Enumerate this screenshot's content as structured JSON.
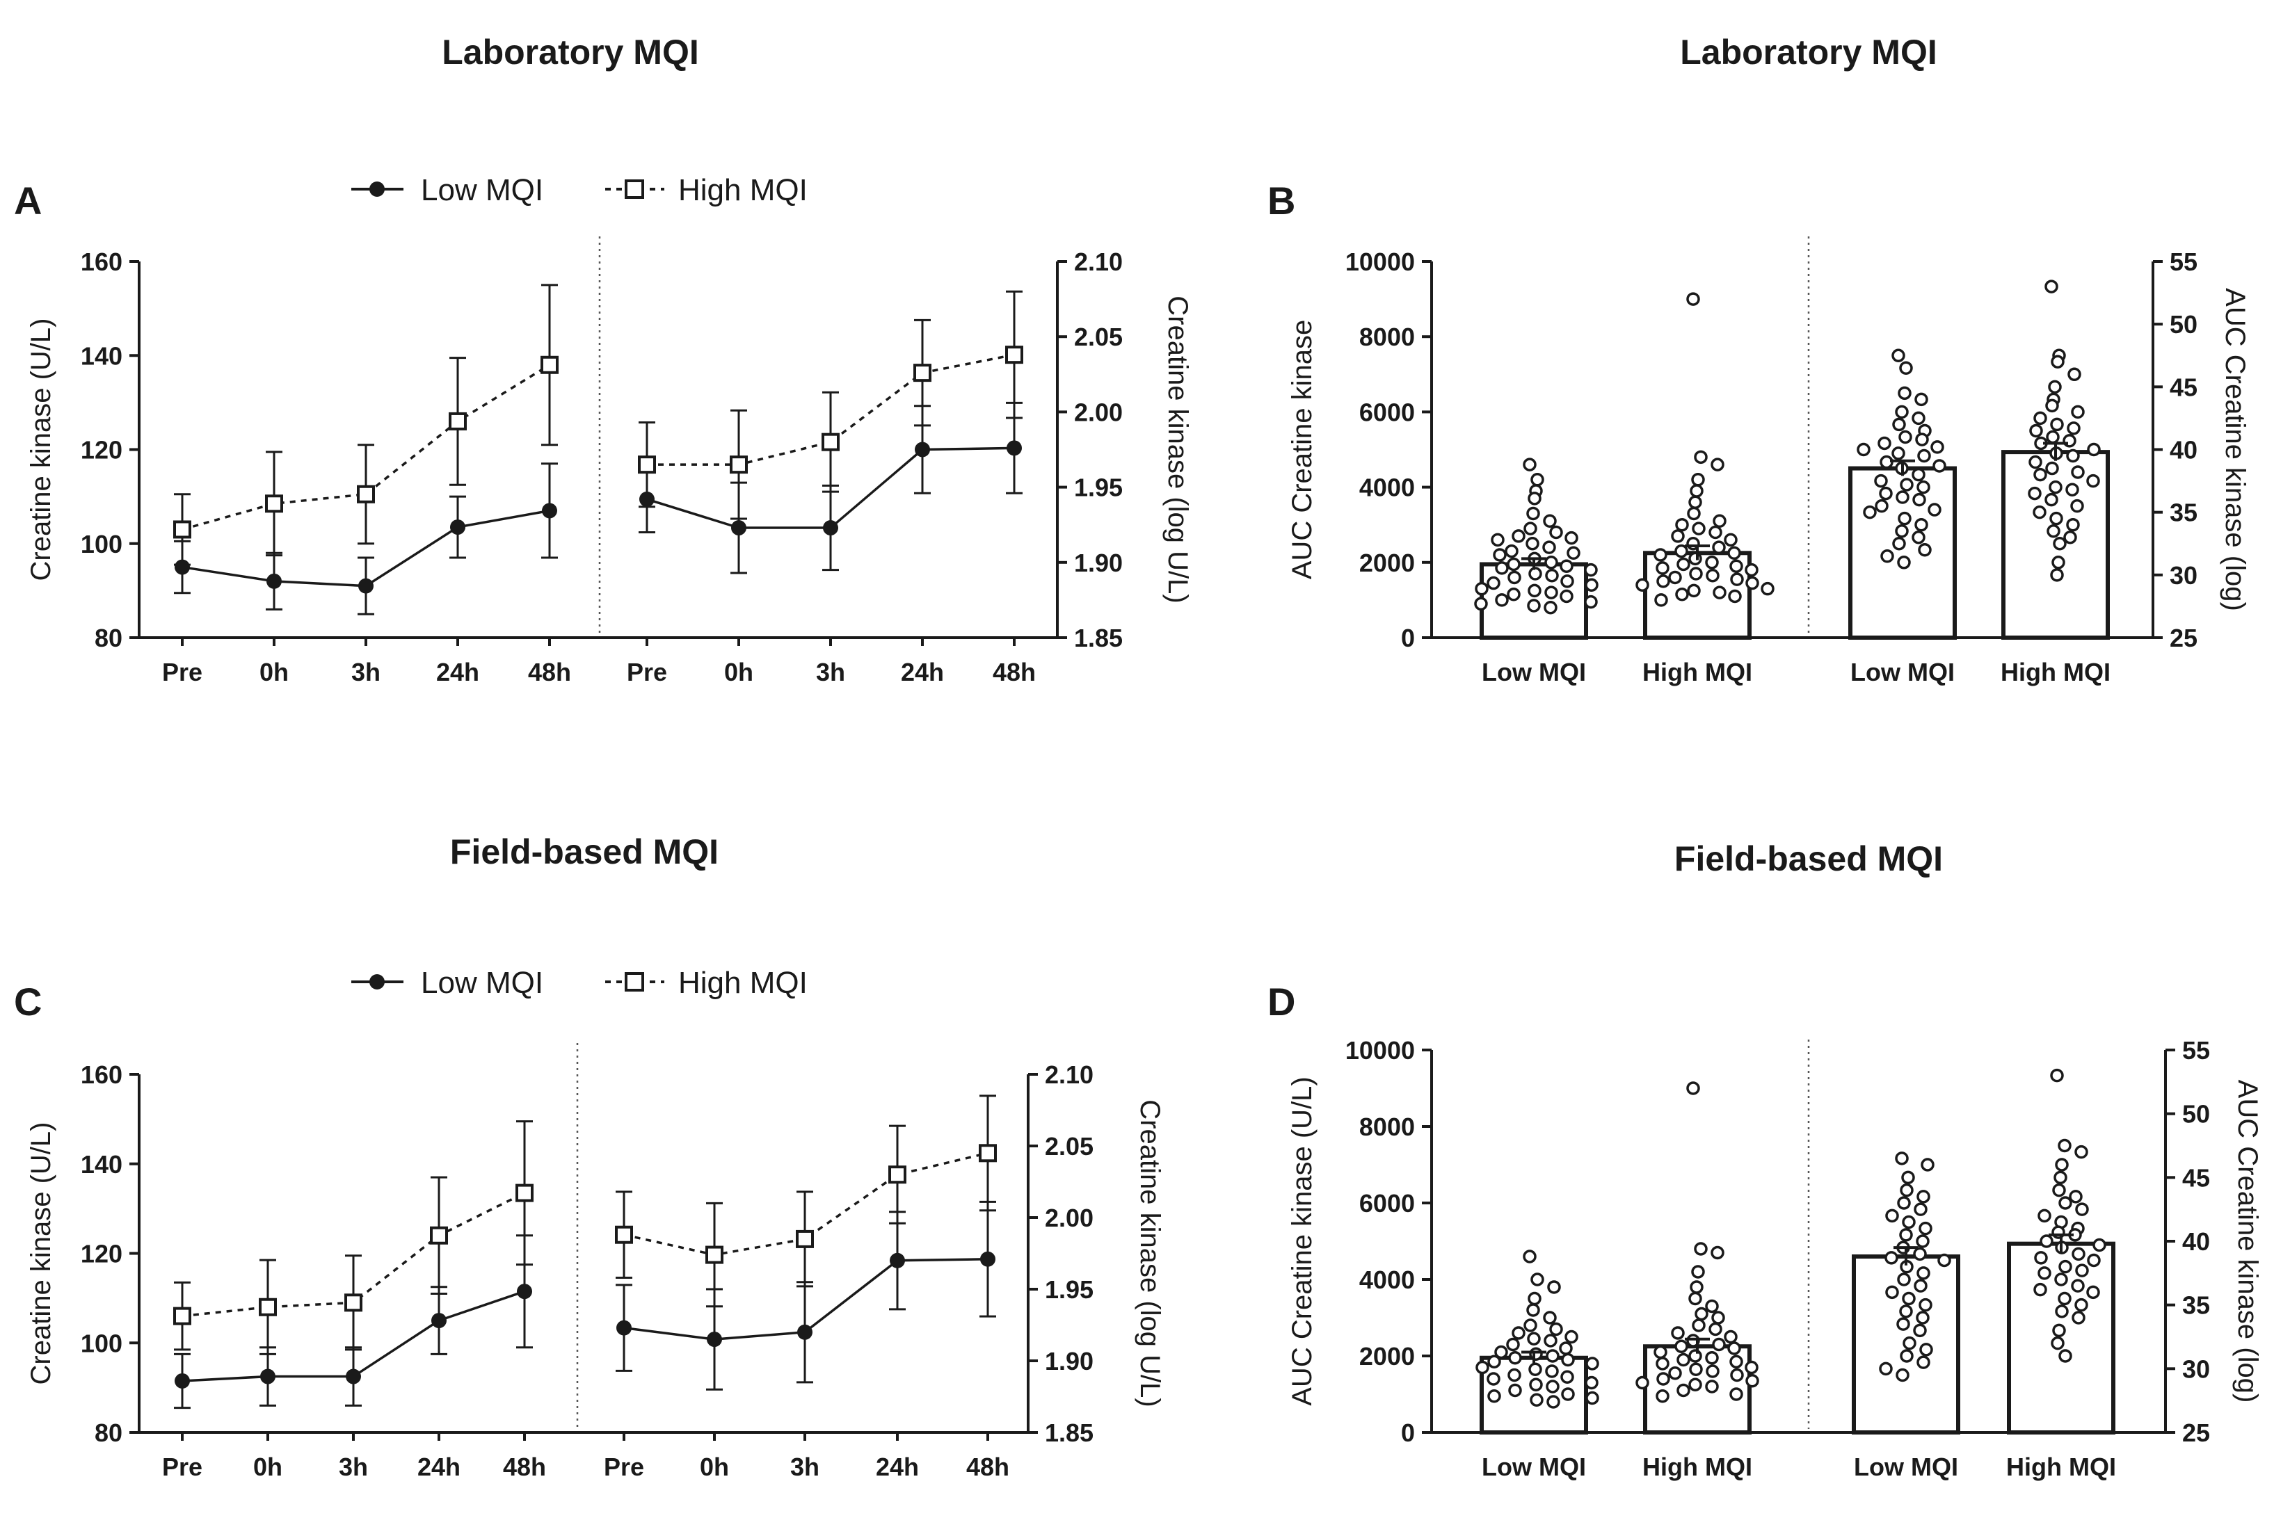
{
  "titles": {
    "top_left": "Laboratory MQI",
    "top_right": "Laboratory MQI",
    "bottom_left": "Field-based MQI",
    "bottom_right": "Field-based MQI"
  },
  "panels": {
    "A": "A",
    "B": "B",
    "C": "C",
    "D": "D"
  },
  "legend": {
    "low": "Low MQI",
    "high": "High MQI"
  },
  "colors": {
    "ink": "#1a1a1a",
    "background": "#ffffff"
  },
  "chart_data": [
    {
      "id": "A",
      "type": "line",
      "title": "Laboratory MQI",
      "categories": [
        "Pre",
        "0h",
        "3h",
        "24h",
        "48h"
      ],
      "left": {
        "ylabel": "Creatine kinase (U/L)",
        "ylim": [
          80,
          160
        ],
        "yticks": [
          "80",
          "100",
          "120",
          "140",
          "160"
        ],
        "series": [
          {
            "name": "Low MQI",
            "values": [
              95,
              92,
              91,
              103.5,
              107
            ],
            "err_up": [
              5.5,
              6,
              6,
              6.5,
              10
            ],
            "err_down": [
              5.5,
              6,
              6,
              6.5,
              10
            ]
          },
          {
            "name": "High MQI",
            "values": [
              103,
              108.5,
              110.5,
              126,
              138
            ],
            "err_up": [
              7.5,
              11,
              10.5,
              13.5,
              17
            ],
            "err_down": [
              7.5,
              11,
              10.5,
              13.5,
              17
            ]
          }
        ]
      },
      "right": {
        "ylabel": "Creatine kinase (log U/L)",
        "ylim": [
          1.85,
          2.1
        ],
        "yticks": [
          "1.85",
          "1.90",
          "1.95",
          "2.00",
          "2.05",
          "2.10"
        ],
        "series": [
          {
            "name": "Low MQI",
            "values": [
              1.942,
              1.923,
              1.923,
              1.975,
              1.976
            ],
            "err_up": [
              0.022,
              0.03,
              0.028,
              0.029,
              0.03
            ],
            "err_down": [
              0.022,
              0.03,
              0.028,
              0.029,
              0.03
            ]
          },
          {
            "name": "High MQI",
            "values": [
              1.965,
              1.965,
              1.98,
              2.026,
              2.038
            ],
            "err_up": [
              0.028,
              0.036,
              0.033,
              0.035,
              0.042
            ],
            "err_down": [
              0.028,
              0.036,
              0.033,
              0.035,
              0.042
            ]
          }
        ]
      }
    },
    {
      "id": "B",
      "type": "bar",
      "title": "Laboratory MQI",
      "categories": [
        "Low MQI",
        "High MQI"
      ],
      "left": {
        "ylabel": "AUC Creatine kinase",
        "ylim": [
          0,
          10000
        ],
        "yticks": [
          "0",
          "2000",
          "4000",
          "6000",
          "8000",
          "10000"
        ],
        "values": [
          1950,
          2250
        ],
        "sem": [
          150,
          190
        ],
        "points": [
          [
            4600,
            4200,
            3900,
            3700,
            3300,
            3100,
            2900,
            2800,
            2700,
            2650,
            2600,
            2500,
            2400,
            2300,
            2250,
            2200,
            2100,
            2000,
            1950,
            1900,
            1850,
            1800,
            1700,
            1650,
            1600,
            1500,
            1450,
            1400,
            1300,
            1250,
            1200,
            1150,
            1100,
            1000,
            950,
            900,
            850,
            800
          ],
          [
            9000,
            4800,
            4600,
            4200,
            3900,
            3600,
            3300,
            3100,
            3000,
            2900,
            2800,
            2700,
            2600,
            2500,
            2400,
            2300,
            2250,
            2200,
            2100,
            2000,
            1950,
            1900,
            1850,
            1800,
            1700,
            1650,
            1600,
            1550,
            1500,
            1450,
            1400,
            1300,
            1250,
            1200,
            1150,
            1100,
            1000
          ]
        ]
      },
      "right": {
        "ylabel": "AUC Creatine kinase (log)",
        "ylim": [
          25,
          55
        ],
        "yticks": [
          "25",
          "30",
          "35",
          "40",
          "45",
          "50",
          "55"
        ],
        "values": [
          38.5,
          39.8
        ],
        "sem": [
          0.6,
          0.7
        ],
        "points": [
          [
            47.5,
            46.5,
            44.5,
            44,
            43,
            42.5,
            42,
            41.5,
            41,
            40.8,
            40.5,
            40.2,
            40,
            39.7,
            39.5,
            39,
            38.7,
            38.5,
            38,
            37.5,
            37.2,
            37,
            36.5,
            36.2,
            36,
            35.5,
            35.2,
            35,
            34.5,
            34,
            33.5,
            33,
            32.5,
            32,
            31.5,
            31
          ],
          [
            53,
            47.5,
            47,
            46,
            45,
            44,
            43.5,
            43,
            42.5,
            42,
            41.7,
            41.5,
            41,
            40.7,
            40.5,
            40,
            39.7,
            39.5,
            39,
            38.5,
            38.2,
            38,
            37.5,
            37,
            36.8,
            36.5,
            36,
            35.5,
            35,
            34.5,
            34,
            33.5,
            33,
            32.5,
            31,
            30
          ]
        ]
      }
    },
    {
      "id": "C",
      "type": "line",
      "title": "Field-based MQI",
      "categories": [
        "Pre",
        "0h",
        "3h",
        "24h",
        "48h"
      ],
      "left": {
        "ylabel": "Creatine kinase (U/L)",
        "ylim": [
          80,
          160
        ],
        "yticks": [
          "80",
          "100",
          "120",
          "140",
          "160"
        ],
        "series": [
          {
            "name": "Low MQI",
            "values": [
              91.5,
              92.5,
              92.5,
              105,
              111.5
            ],
            "err_up": [
              6,
              6.5,
              6.5,
              7.5,
              12.5
            ],
            "err_down": [
              6,
              6.5,
              6.5,
              7.5,
              12.5
            ]
          },
          {
            "name": "High MQI",
            "values": [
              106,
              108,
              109,
              124,
              133.5
            ],
            "err_up": [
              7.5,
              10.5,
              10.5,
              13,
              16
            ],
            "err_down": [
              7.5,
              10.5,
              10.5,
              13,
              16
            ]
          }
        ]
      },
      "right": {
        "ylabel": "Creatine kinase (log U/L)",
        "ylim": [
          1.85,
          2.1
        ],
        "yticks": [
          "1.85",
          "1.90",
          "1.95",
          "2.00",
          "2.05",
          "2.10"
        ],
        "series": [
          {
            "name": "Low MQI",
            "values": [
              1.923,
              1.915,
              1.92,
              1.97,
              1.971
            ],
            "err_up": [
              0.03,
              0.035,
              0.035,
              0.034,
              0.04
            ],
            "err_down": [
              0.03,
              0.035,
              0.035,
              0.034,
              0.04
            ]
          },
          {
            "name": "High MQI",
            "values": [
              1.988,
              1.974,
              1.985,
              2.03,
              2.045
            ],
            "err_up": [
              0.03,
              0.036,
              0.033,
              0.034,
              0.04
            ],
            "err_down": [
              0.03,
              0.036,
              0.033,
              0.034,
              0.04
            ]
          }
        ]
      }
    },
    {
      "id": "D",
      "type": "bar",
      "title": "Field-based MQI",
      "categories": [
        "Low MQI",
        "High MQI"
      ],
      "left": {
        "ylabel": "AUC Creatine kinase (U/L)",
        "ylim": [
          0,
          10000
        ],
        "yticks": [
          "0",
          "2000",
          "4000",
          "6000",
          "8000",
          "10000"
        ],
        "values": [
          1950,
          2250
        ],
        "sem": [
          150,
          190
        ],
        "points": [
          [
            4600,
            4000,
            3800,
            3500,
            3200,
            3000,
            2800,
            2700,
            2600,
            2500,
            2450,
            2400,
            2300,
            2200,
            2100,
            2050,
            2000,
            1950,
            1900,
            1850,
            1800,
            1700,
            1650,
            1600,
            1500,
            1450,
            1400,
            1300,
            1250,
            1200,
            1100,
            1000,
            950,
            900,
            850,
            800
          ],
          [
            9000,
            4800,
            4700,
            4200,
            3800,
            3500,
            3300,
            3100,
            3000,
            2800,
            2700,
            2600,
            2500,
            2400,
            2300,
            2250,
            2200,
            2100,
            2000,
            1950,
            1900,
            1850,
            1800,
            1700,
            1650,
            1600,
            1550,
            1500,
            1400,
            1350,
            1300,
            1250,
            1200,
            1100,
            1000,
            950
          ]
        ]
      },
      "right": {
        "ylabel": "AUC Creatine kinase (log)",
        "ylim": [
          25,
          55
        ],
        "yticks": [
          "25",
          "30",
          "35",
          "40",
          "45",
          "50",
          "55"
        ],
        "values": [
          38.8,
          39.8
        ],
        "sem": [
          0.7,
          0.7
        ],
        "points": [
          [
            46.5,
            46,
            45,
            44,
            43.5,
            43,
            42.5,
            42,
            41.5,
            41,
            40.5,
            40,
            39.5,
            39,
            38.7,
            38.5,
            38,
            37.5,
            37,
            36.5,
            36,
            35.5,
            35,
            34.5,
            34,
            33.5,
            33,
            32,
            31.5,
            31,
            30.5,
            30,
            29.5
          ],
          [
            53,
            47.5,
            47,
            46,
            45,
            44,
            43.5,
            43,
            42.5,
            42,
            41.5,
            41,
            40.7,
            40.5,
            40,
            39.7,
            39.5,
            39,
            38.7,
            38.5,
            38,
            37.7,
            37.5,
            37,
            36.5,
            36.2,
            36,
            35.5,
            35,
            34.5,
            34,
            33,
            32,
            31
          ]
        ]
      }
    }
  ]
}
